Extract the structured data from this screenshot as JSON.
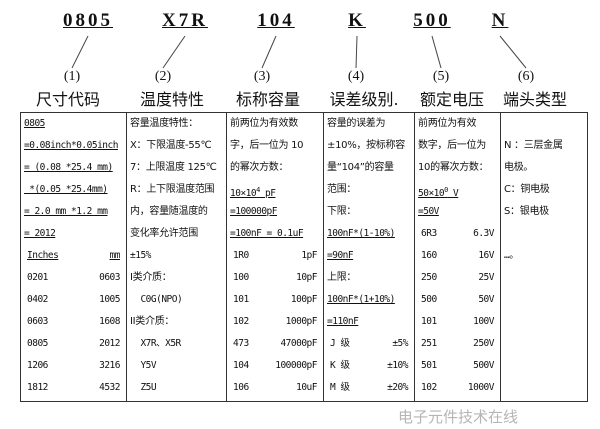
{
  "codes": [
    {
      "code": "0805",
      "num": "(1)",
      "title": "尺寸代码"
    },
    {
      "code": "X7R",
      "num": "(2)",
      "title": "温度特性"
    },
    {
      "code": "104",
      "num": "(3)",
      "title": "标称容量"
    },
    {
      "code": "K",
      "num": "(4)",
      "title": "误差级别."
    },
    {
      "code": "500",
      "num": "(5)",
      "title": "额定电压"
    },
    {
      "code": "N",
      "num": "(6)",
      "title": "端头类型"
    }
  ],
  "columns": [
    [
      {
        "t": "0805",
        "u": true
      },
      {
        "t": "=0.08inch*0.05inch",
        "u": true
      },
      {
        "t": "= (0.08 *25.4 mm)",
        "u": true
      },
      {
        "t": " *(0.05 *25.4mm)",
        "u": true
      },
      {
        "t": "= 2.0 mm *1.2 mm",
        "u": true
      },
      {
        "t": "= 2012",
        "u": true
      },
      {
        "a": "Inches",
        "b": "mm",
        "u": true
      },
      {
        "a": "0201",
        "b": "0603"
      },
      {
        "a": "0402",
        "b": "1005"
      },
      {
        "a": "0603",
        "b": "1608"
      },
      {
        "a": "0805",
        "b": "2012"
      },
      {
        "a": "1206",
        "b": "3216"
      },
      {
        "a": "1812",
        "b": "4532"
      }
    ],
    [
      {
        "t": "容量温度特性：",
        "cn": true
      },
      {
        "t": "X：下限温度-55℃",
        "cn": true
      },
      {
        "t": "7：上限温度 125℃",
        "cn": true
      },
      {
        "t": "R：上下限温度范围",
        "cn": true
      },
      {
        "t": "内，容量随温度的",
        "cn": true
      },
      {
        "t": "变化率允许范围",
        "cn": true
      },
      {
        "t": "±15%"
      },
      {
        "t": "I类介质：",
        "cn": true
      },
      {
        "t": "  C0G(NPO)"
      },
      {
        "t": "II类介质：",
        "cn": true
      },
      {
        "t": "  X7R、X5R"
      },
      {
        "t": "  Y5V"
      },
      {
        "t": "  Z5U"
      }
    ],
    [
      {
        "t": "前两位为有效数",
        "cn": true
      },
      {
        "t": "字，后一位为 10",
        "cn": true
      },
      {
        "t": "的幂次方数：",
        "cn": true
      },
      {
        "t": "10×10",
        "sup": "4",
        "t2": " pF",
        "u": true
      },
      {
        "t": "=100000pF",
        "u": true
      },
      {
        "t": "=100nF = 0.1uF",
        "u": true
      },
      {
        "a": "1R0",
        "b": "1pF"
      },
      {
        "a": "100",
        "b": "10pF"
      },
      {
        "a": "101",
        "b": "100pF"
      },
      {
        "a": "102",
        "b": "1000pF"
      },
      {
        "a": "473",
        "b": "47000pF"
      },
      {
        "a": "104",
        "b": "100000pF"
      },
      {
        "a": "106",
        "b": "10uF"
      }
    ],
    [
      {
        "t": "容量的误差为",
        "cn": true
      },
      {
        "t": "±10%，按标称容",
        "cn": true
      },
      {
        "t": "量“104”的容量",
        "cn": true
      },
      {
        "t": "范围：",
        "cn": true
      },
      {
        "t": "下限：",
        "cn": true
      },
      {
        "t": "100nF*(1-10%)",
        "u": true
      },
      {
        "t": "=90nF",
        "u": true
      },
      {
        "t": "上限：",
        "cn": true
      },
      {
        "t": "100nF*(1+10%)",
        "u": true
      },
      {
        "t": "=110nF",
        "u": true
      },
      {
        "a": "J 级",
        "b": "±5%"
      },
      {
        "a": "K 级",
        "b": "±10%"
      },
      {
        "a": "M 级",
        "b": "±20%"
      }
    ],
    [
      {
        "t": "前两位为有效",
        "cn": true
      },
      {
        "t": "数字，后一位为",
        "cn": true
      },
      {
        "t": "10的幂次方数：",
        "cn": true
      },
      {
        "t": "50×10",
        "sup": "0",
        "t2": " V",
        "u": true
      },
      {
        "t": "=50V",
        "u": true
      },
      {
        "a": "6R3",
        "b": "6.3V"
      },
      {
        "a": "160",
        "b": "16V"
      },
      {
        "a": "250",
        "b": "25V"
      },
      {
        "a": "500",
        "b": "50V"
      },
      {
        "a": "101",
        "b": "100V"
      },
      {
        "a": "251",
        "b": "250V"
      },
      {
        "a": "501",
        "b": "500V"
      },
      {
        "a": "102",
        "b": "1000V"
      }
    ],
    [
      {
        "t": ""
      },
      {
        "t": "N ：三层金属",
        "cn": true
      },
      {
        "t": "电极。",
        "cn": true
      },
      {
        "t": "C：铜电极",
        "cn": true
      },
      {
        "t": "S：银电极",
        "cn": true
      },
      {
        "t": ""
      },
      {
        "t": "…。"
      }
    ]
  ],
  "watermark": "电子元件技术在线"
}
